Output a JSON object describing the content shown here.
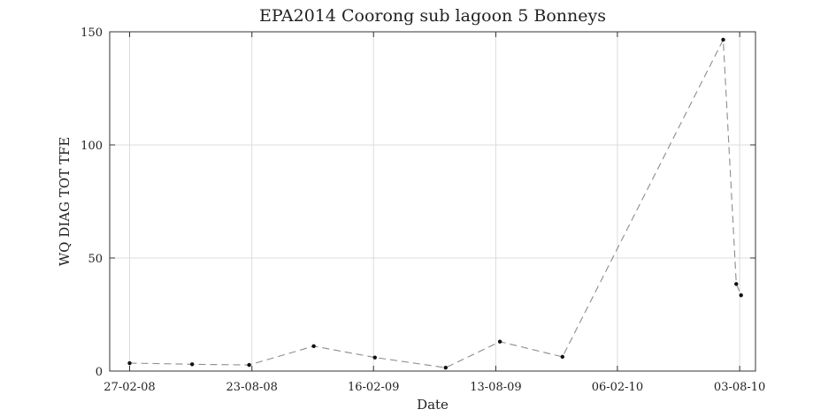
{
  "chart_data": {
    "type": "line",
    "title": "EPA2014 Coorong sub lagoon 5 Bonneys",
    "xlabel": "Date",
    "ylabel": "WQ DIAG TOT TFE",
    "xlim": [
      "2008-01-29",
      "2010-08-26"
    ],
    "ylim": [
      0,
      150
    ],
    "x_ticks": [
      {
        "date": "2008-02-27",
        "label": "27-02-08"
      },
      {
        "date": "2008-08-23",
        "label": "23-08-08"
      },
      {
        "date": "2009-02-16",
        "label": "16-02-09"
      },
      {
        "date": "2009-08-13",
        "label": "13-08-09"
      },
      {
        "date": "2010-02-06",
        "label": "06-02-10"
      },
      {
        "date": "2010-08-03",
        "label": "03-08-10"
      }
    ],
    "y_ticks": [
      0,
      50,
      100,
      150
    ],
    "grid": true,
    "series": [
      {
        "color": "#8c8c8c",
        "line_style": "dashed",
        "marker_color": "#111111",
        "points": [
          {
            "x": "2008-02-27",
            "y": 3.5
          },
          {
            "x": "2008-05-28",
            "y": 3.0
          },
          {
            "x": "2008-08-19",
            "y": 2.7
          },
          {
            "x": "2008-11-21",
            "y": 11.0
          },
          {
            "x": "2009-02-18",
            "y": 6.0
          },
          {
            "x": "2009-06-01",
            "y": 1.5
          },
          {
            "x": "2009-08-19",
            "y": 13.0
          },
          {
            "x": "2009-11-18",
            "y": 6.3
          },
          {
            "x": "2010-07-10",
            "y": 146.5
          },
          {
            "x": "2010-07-29",
            "y": 38.5
          },
          {
            "x": "2010-08-05",
            "y": 33.5
          }
        ]
      }
    ]
  }
}
